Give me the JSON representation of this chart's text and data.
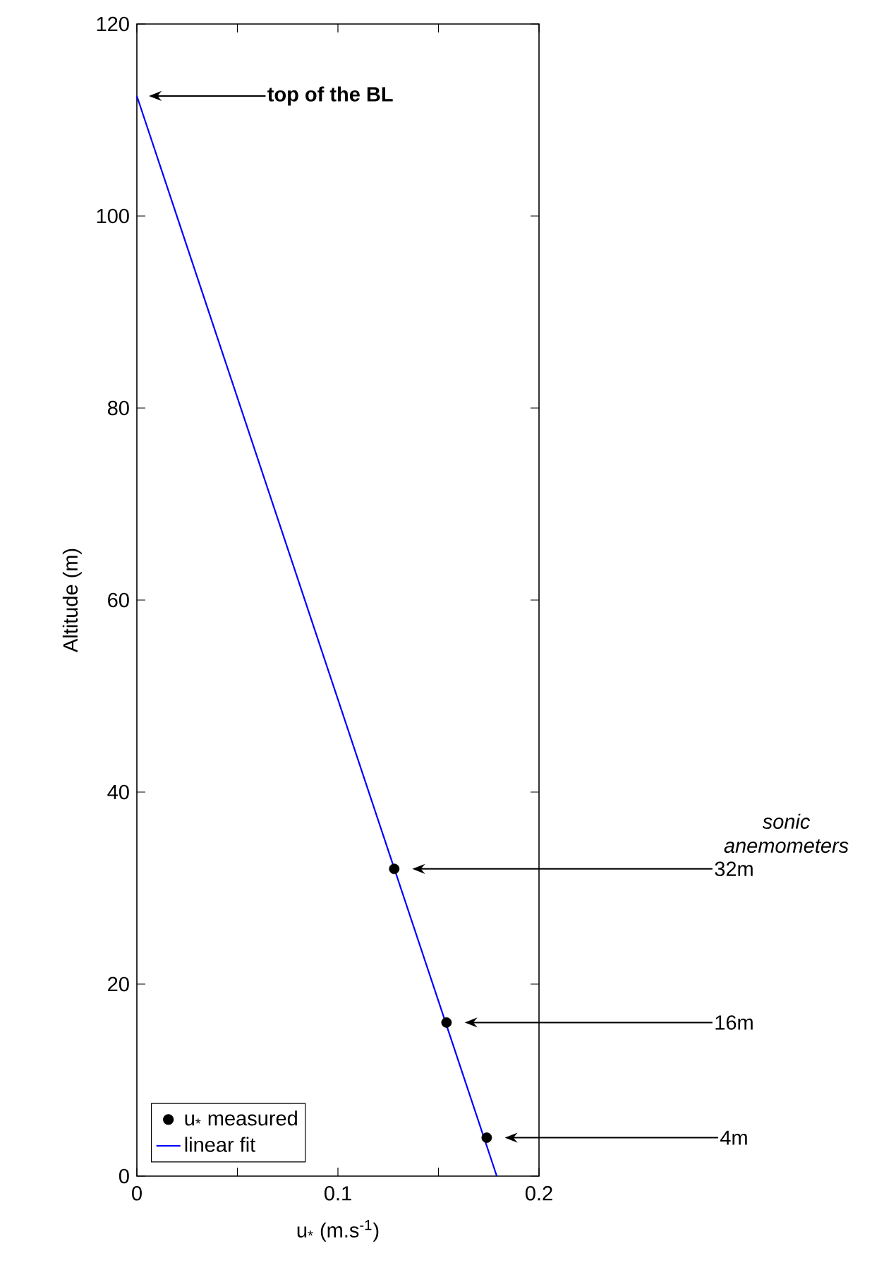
{
  "chart_data": {
    "type": "scatter",
    "xlabel": "u$_{*}$ (m.s$^{-1}$)",
    "ylabel": "Altitude (m)",
    "xlim": [
      0,
      0.2
    ],
    "ylim": [
      0,
      120
    ],
    "xticks": [
      0,
      {
        "value": 0.05,
        "label": null
      },
      0.1,
      {
        "value": 0.15,
        "label": null
      },
      0.2
    ],
    "yticks": [
      0,
      20,
      40,
      60,
      80,
      100,
      120
    ],
    "series": [
      {
        "name": "u$_{*}$ measured",
        "color": "#000000",
        "x": [
          0.128,
          0.154,
          0.174
        ],
        "values": [
          32,
          16,
          4
        ],
        "marker": "circle"
      },
      {
        "name": "linear fit",
        "type": "line",
        "color": "#0000ff",
        "x": [
          0,
          0.179
        ],
        "values": [
          112.5,
          0
        ],
        "line_style": "solid",
        "marker": "none"
      }
    ],
    "legend": "bottom left",
    "annotations": [
      "top of the BL",
      "sonic anemometers",
      "32m",
      "16m",
      "4m"
    ]
  }
}
